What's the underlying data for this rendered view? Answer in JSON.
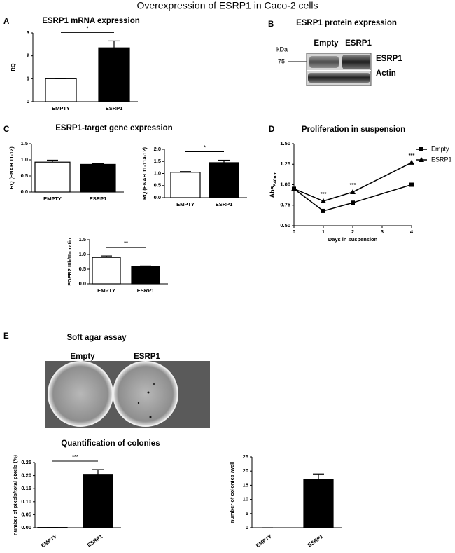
{
  "title": "Overexpression of ESRP1 in Caco-2 cells",
  "panels": [
    "A",
    "B",
    "C",
    "D",
    "E"
  ],
  "blot": {
    "title": "ESRP1 protein expression",
    "lanes": [
      "Empty",
      "ESRP1"
    ],
    "unit": "kDa",
    "marker": "75",
    "bands": [
      "ESRP1",
      "Actin"
    ]
  },
  "sections": {
    "target_genes": "ESRP1-target gene expression",
    "soft_agar": "Soft agar assay",
    "wells": [
      "Empty",
      "ESRP1"
    ],
    "quantification": "Quantification of colonies"
  },
  "chart_data": [
    {
      "type": "bar",
      "title": "ESRP1 mRNA expression",
      "ylabel": "RQ",
      "categories": [
        "EMPTY",
        "ESRP1"
      ],
      "values": [
        1,
        2.35
      ],
      "errors": [
        0,
        0.3
      ],
      "colors": [
        "#ffffff",
        "#000000"
      ],
      "ylim": [
        0,
        3
      ],
      "yticks": [
        0,
        1,
        2,
        3
      ],
      "significance": "*"
    },
    {
      "type": "bar",
      "ylabel": "RQ (ENAH 11-12)",
      "categories": [
        "EMPTY",
        "ESRP1"
      ],
      "values": [
        0.93,
        0.86
      ],
      "errors": [
        0.06,
        0.02
      ],
      "colors": [
        "#ffffff",
        "#000000"
      ],
      "ylim": [
        0,
        1.5
      ],
      "yticks": [
        {
          "value": 0,
          "label": "0.0"
        },
        {
          "value": 0.5,
          "label": "0.5"
        },
        {
          "value": 1,
          "label": "1.0"
        },
        {
          "value": 1.5,
          "label": "1.5"
        }
      ]
    },
    {
      "type": "bar",
      "ylabel": "RQ (ENAH 11-11a-12)",
      "categories": [
        "EMPTY",
        "ESRP1"
      ],
      "values": [
        1.05,
        1.45
      ],
      "errors": [
        0.03,
        0.1
      ],
      "colors": [
        "#ffffff",
        "#000000"
      ],
      "ylim": [
        0,
        2
      ],
      "yticks": [
        {
          "value": 0,
          "label": "0.0"
        },
        {
          "value": 0.5,
          "label": "0.5"
        },
        {
          "value": 1,
          "label": "1.0"
        },
        {
          "value": 1.5,
          "label": "1.5"
        },
        {
          "value": 2,
          "label": "2.0"
        }
      ],
      "significance": "*"
    },
    {
      "type": "bar",
      "ylabel": "FGFR2 IIIb/IIIc ratio",
      "categories": [
        "EMPTY",
        "ESRP1"
      ],
      "values": [
        0.9,
        0.6
      ],
      "errors": [
        0.05,
        0.01
      ],
      "colors": [
        "#ffffff",
        "#000000"
      ],
      "ylim": [
        0,
        1.5
      ],
      "yticks": [
        {
          "value": 0,
          "label": "0.0"
        },
        {
          "value": 0.5,
          "label": "0.5"
        },
        {
          "value": 1,
          "label": "1.0"
        },
        {
          "value": 1.5,
          "label": "1.5"
        }
      ],
      "significance": "**"
    },
    {
      "type": "line",
      "title": "Proliferation in suspension",
      "ylabel": "Abs",
      "ylabel_sub": "540nm",
      "xlabel": "Days in suspension",
      "x": [
        0,
        1,
        2,
        4
      ],
      "series": [
        {
          "name": "Empty",
          "color": "#000000",
          "marker": "square",
          "values": [
            0.95,
            0.68,
            0.78,
            1.0
          ]
        },
        {
          "name": "ESRP1",
          "color": "#000000",
          "marker": "triangle",
          "values": [
            0.95,
            0.8,
            0.91,
            1.27
          ]
        }
      ],
      "xlim": [
        0,
        4
      ],
      "xticks": [
        0,
        1,
        2,
        3,
        4
      ],
      "ylim": [
        0.5,
        1.5
      ],
      "yticks": [
        {
          "value": 0.5,
          "label": "0.50"
        },
        {
          "value": 0.75,
          "label": "0.75"
        },
        {
          "value": 1,
          "label": "1.00"
        },
        {
          "value": 1.25,
          "label": "1.25"
        },
        {
          "value": 1.5,
          "label": "1.50"
        }
      ],
      "legend": "upper right",
      "annotations": [
        {
          "x": 1,
          "text": "***"
        },
        {
          "x": 2,
          "text": "***"
        },
        {
          "x": 4,
          "text": "***"
        }
      ]
    },
    {
      "type": "bar",
      "ylabel": "number of pixels/total pixels (%)",
      "categories": [
        "EMPTY",
        "ESRP1"
      ],
      "values": [
        0.001,
        0.205
      ],
      "errors": [
        0,
        0.018
      ],
      "colors": [
        "#ffffff",
        "#000000"
      ],
      "ylim": [
        0,
        0.25
      ],
      "yticks": [
        {
          "value": 0,
          "label": "0.00"
        },
        {
          "value": 0.05,
          "label": "0.05"
        },
        {
          "value": 0.1,
          "label": "0.10"
        },
        {
          "value": 0.15,
          "label": "0.15"
        },
        {
          "value": 0.2,
          "label": "0.20"
        },
        {
          "value": 0.25,
          "label": "0.25"
        }
      ],
      "significance": "***",
      "rotate_labels": true
    },
    {
      "type": "bar",
      "ylabel": "number of colonies /well",
      "categories": [
        "EMPTY",
        "ESRP1"
      ],
      "values": [
        0,
        17
      ],
      "errors": [
        0,
        2
      ],
      "colors": [
        "#ffffff",
        "#000000"
      ],
      "ylim": [
        0,
        25
      ],
      "yticks": [
        0,
        5,
        10,
        15,
        20,
        25
      ],
      "rotate_labels": true
    }
  ]
}
